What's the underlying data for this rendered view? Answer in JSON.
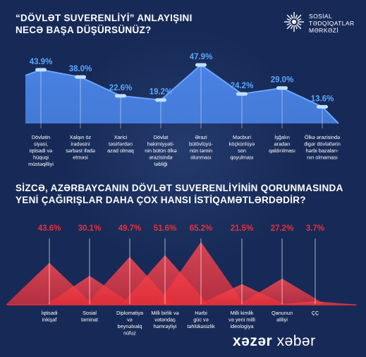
{
  "header": {
    "question1_line1": "“DÖVLƏT SUVERENLİYİ” ANLAYIŞINI",
    "question1_line2": "NECƏ BAŞA DÜŞÜRSÜNÜZ?",
    "question2_line1": "SİZCƏ, AZƏRBAYCANIN DÖVLƏT SUVERENLİYİNİN QORUNMASINDA",
    "question2_line2": "YENİ ÇAĞIRIŞLAR DAHA ÇOX HANSI İSTİQAMƏTLƏRDƏDİR?"
  },
  "logo": {
    "line1": "SOSİAL",
    "line2": "TƏDQİQATLAR",
    "line3": "MƏRKƏZİ",
    "icon": "radial-star-logo"
  },
  "footer": {
    "brand_part1": "xəzər",
    "brand_part2": "xəbər"
  },
  "colors": {
    "background": "#172a57",
    "area_fill": "#4c87ec",
    "area_top": "#6aa4ff",
    "value_blue": "#59a6ff",
    "red": "#e8303a",
    "red_light": "#ff4a52"
  },
  "chart_data": [
    {
      "type": "area",
      "categories": [
        [
          "Dövlətin",
          "siyasi,",
          "iqtisadi və",
          "hüquqi",
          "müstəqilliyi"
        ],
        [
          "Xalqın öz",
          "iradəsini",
          "sərbəst ifadə",
          "etməsi"
        ],
        [
          "Xarici",
          "təsirlərdən",
          "azad olmaq"
        ],
        [
          "Dövlət",
          "hakimiyyəti-",
          "nin bütün ölkə",
          "ərazisində",
          "təbliği"
        ],
        [
          "Ərazi",
          "bütövlüyü-",
          "nün təmin",
          "olunması"
        ],
        [
          "Məcburi",
          "köçkünlüyə",
          "son",
          "qoyulması"
        ],
        [
          "İşğalın",
          "aradan",
          "qaldırılması"
        ],
        [
          "Ölkə ərazisində",
          "digər dövlətlərin",
          "hərbi bazaları-",
          "nın olmaması"
        ]
      ],
      "values": [
        43.9,
        38.0,
        22.6,
        19.2,
        47.9,
        24.2,
        29.0,
        13.6
      ],
      "labels": [
        "43.9%",
        "38.0%",
        "22.6%",
        "19.2%",
        "47.9%",
        "24.2%",
        "29.0%",
        "13.6%"
      ]
    },
    {
      "type": "bar",
      "categories": [
        [
          "İqtisadi",
          "inkişaf"
        ],
        [
          "Sosial",
          "təminat"
        ],
        [
          "Diplomatiya",
          "və",
          "beynəlxalq",
          "nüfuz"
        ],
        [
          "Milli birlik və",
          "vətəndaş",
          "həmrəyliyi"
        ],
        [
          "Hərbi",
          "güc və",
          "təhlükəsizlik"
        ],
        [
          "Milli kimlik",
          "və yeni milli",
          "ideologiya"
        ],
        [
          "Qanunun",
          "aliliyi"
        ],
        [
          "ÇÇ"
        ]
      ],
      "values": [
        43.6,
        30.1,
        49.7,
        51.6,
        65.2,
        21.5,
        27.2,
        3.7
      ],
      "labels": [
        "43.6%",
        "30.1%",
        "49.7%",
        "51.6%",
        "65.2%",
        "21.5%",
        "27.2%",
        "3.7%"
      ]
    }
  ]
}
